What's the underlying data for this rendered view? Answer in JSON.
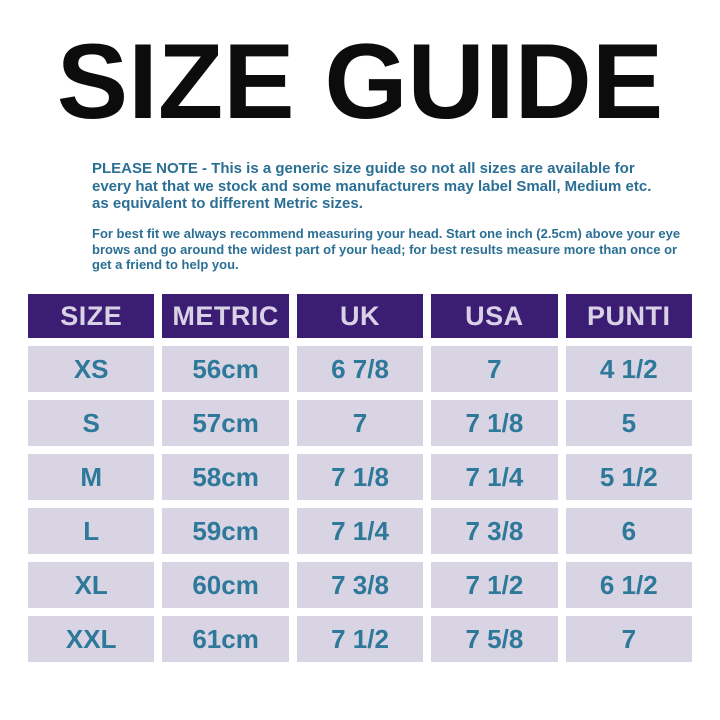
{
  "title": "SIZE GUIDE",
  "notes": [
    "PLEASE NOTE - This is a generic size guide so not all sizes are available for\nevery hat that we stock and some manufacturers may label Small, Medium etc.\nas equivalent to different Metric sizes.",
    "For best fit we always recommend measuring your head. Start one inch (2.5cm) above your eye\nbrows and go around the widest part of your head; for best results measure more than once or\nget a friend to help you."
  ],
  "table": {
    "headers": [
      "SIZE",
      "METRIC",
      "UK",
      "USA",
      "PUNTI"
    ],
    "rows": [
      [
        "XS",
        "56cm",
        "6 7/8",
        "7",
        "4 1/2"
      ],
      [
        "S",
        "57cm",
        "7",
        "7 1/8",
        "5"
      ],
      [
        "M",
        "58cm",
        "7 1/8",
        "7 1/4",
        "5 1/2"
      ],
      [
        "L",
        "59cm",
        "7 1/4",
        "7 3/8",
        "6"
      ],
      [
        "XL",
        "60cm",
        "7 3/8",
        "7 1/2",
        "6 1/2"
      ],
      [
        "XXL",
        "61cm",
        "7 1/2",
        "7 5/8",
        "7"
      ]
    ]
  },
  "colors": {
    "title_color": "#0c0c0c",
    "note_color": "#2b6f94",
    "header_bg": "#3b1e74",
    "header_text": "#d9d2e6",
    "cell_bg": "#d9d4e4",
    "cell_text": "#2e7899",
    "page_bg": "#ffffff"
  }
}
